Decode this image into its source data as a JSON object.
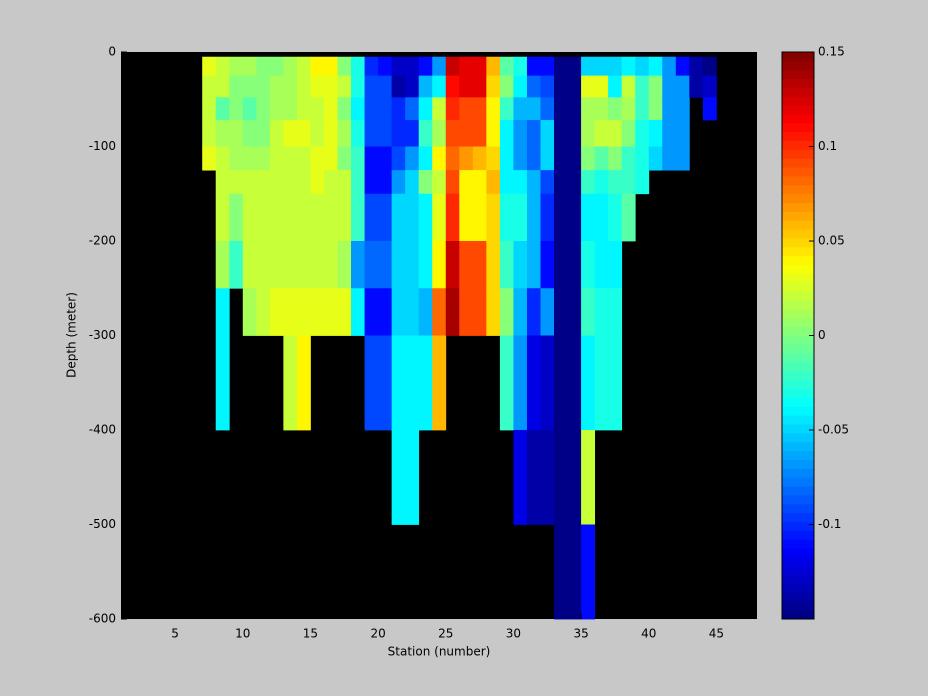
{
  "chart_data": {
    "type": "heatmap",
    "x_label": "Station (number)",
    "y_label": "Depth (meter)",
    "x": [
      7,
      8,
      9,
      10,
      11,
      12,
      13,
      14,
      15,
      16,
      17,
      18,
      19,
      20,
      21,
      22,
      23,
      24,
      25,
      26,
      27,
      28,
      29,
      30,
      31,
      32,
      33,
      34,
      35,
      36,
      37,
      38,
      39,
      40,
      41,
      42,
      43,
      44,
      45
    ],
    "y": [
      -5,
      -25,
      -48,
      -72,
      -100,
      -125,
      -150,
      -200,
      -250,
      -300,
      -400,
      -500,
      -600
    ],
    "values": [
      [
        0.03,
        0.02,
        0.02,
        0.02,
        0.03,
        null,
        null,
        null,
        null,
        null,
        null,
        null
      ],
      [
        0.02,
        0.02,
        -0.01,
        0.01,
        0.02,
        0.02,
        0.02,
        0.01,
        -0.04,
        -0.04,
        null,
        null
      ],
      [
        0.01,
        0.0,
        0.0,
        0.01,
        0.01,
        0.02,
        0.0,
        -0.02,
        null,
        null,
        null,
        null
      ],
      [
        0.01,
        0.0,
        -0.01,
        0.0,
        0.01,
        0.02,
        0.02,
        0.02,
        0.01,
        null,
        null,
        null
      ],
      [
        0.0,
        0.0,
        0.0,
        0.0,
        0.01,
        0.02,
        0.02,
        0.02,
        0.02,
        null,
        null,
        null
      ],
      [
        0.0,
        0.01,
        0.01,
        0.02,
        0.02,
        0.02,
        0.02,
        0.02,
        0.03,
        null,
        null,
        null
      ],
      [
        0.01,
        0.01,
        0.01,
        0.03,
        0.02,
        0.02,
        0.02,
        0.02,
        0.03,
        0.02,
        null,
        null
      ],
      [
        0.02,
        0.02,
        0.02,
        0.03,
        0.02,
        0.02,
        0.02,
        0.02,
        0.03,
        0.04,
        null,
        null
      ],
      [
        0.04,
        0.03,
        0.02,
        0.02,
        0.03,
        0.03,
        0.02,
        0.02,
        0.03,
        null,
        null,
        null
      ],
      [
        0.04,
        0.03,
        0.03,
        0.03,
        0.03,
        0.02,
        0.02,
        0.02,
        0.03,
        null,
        null,
        null
      ],
      [
        0.0,
        0.02,
        0.0,
        0.01,
        0.0,
        0.02,
        0.02,
        0.01,
        0.03,
        null,
        null,
        null
      ],
      [
        -0.03,
        -0.03,
        -0.04,
        -0.03,
        -0.02,
        -0.02,
        -0.02,
        -0.07,
        -0.04,
        null,
        null,
        null
      ],
      [
        -0.1,
        -0.09,
        -0.09,
        -0.09,
        -0.11,
        -0.11,
        -0.09,
        -0.08,
        -0.11,
        -0.09,
        null,
        null
      ],
      [
        -0.11,
        -0.09,
        -0.09,
        -0.09,
        -0.11,
        -0.11,
        -0.09,
        -0.08,
        -0.11,
        -0.09,
        null,
        null
      ],
      [
        -0.13,
        -0.14,
        -0.1,
        -0.1,
        -0.09,
        -0.07,
        -0.05,
        -0.05,
        -0.05,
        -0.04,
        -0.04,
        null
      ],
      [
        -0.13,
        -0.13,
        -0.08,
        -0.1,
        -0.07,
        -0.05,
        -0.05,
        -0.05,
        -0.05,
        -0.04,
        -0.04,
        null
      ],
      [
        -0.11,
        -0.06,
        -0.04,
        -0.02,
        -0.04,
        0.0,
        -0.04,
        -0.04,
        -0.06,
        -0.04,
        null,
        null
      ],
      [
        -0.07,
        -0.04,
        0.02,
        0.01,
        0.04,
        0.02,
        0.03,
        0.04,
        0.08,
        0.06,
        null,
        null
      ],
      [
        0.13,
        0.11,
        0.1,
        0.09,
        0.08,
        0.09,
        0.1,
        0.13,
        0.14,
        null,
        null,
        null
      ],
      [
        0.12,
        0.12,
        0.09,
        0.09,
        0.07,
        0.04,
        0.04,
        0.09,
        0.09,
        null,
        null,
        null
      ],
      [
        0.12,
        0.12,
        0.09,
        0.09,
        0.06,
        0.04,
        0.04,
        0.09,
        0.09,
        null,
        null,
        null
      ],
      [
        0.06,
        0.05,
        0.04,
        0.04,
        0.05,
        0.06,
        0.05,
        0.05,
        0.05,
        null,
        null,
        null
      ],
      [
        -0.01,
        0.0,
        -0.02,
        -0.04,
        -0.04,
        -0.04,
        -0.03,
        -0.02,
        0.0,
        -0.02,
        null,
        null
      ],
      [
        -0.03,
        -0.04,
        -0.06,
        -0.07,
        -0.07,
        -0.04,
        -0.03,
        -0.05,
        -0.06,
        -0.07,
        -0.12,
        null
      ],
      [
        -0.11,
        -0.08,
        -0.06,
        -0.08,
        -0.08,
        -0.06,
        -0.06,
        -0.06,
        -0.1,
        -0.12,
        -0.14,
        null
      ],
      [
        -0.11,
        -0.09,
        -0.08,
        -0.05,
        -0.05,
        -0.09,
        -0.1,
        -0.11,
        -0.07,
        -0.13,
        -0.14,
        null
      ],
      [
        -0.15,
        -0.15,
        -0.15,
        -0.15,
        -0.15,
        -0.15,
        -0.15,
        -0.15,
        -0.15,
        -0.15,
        -0.15,
        -0.15
      ],
      [
        -0.15,
        -0.15,
        -0.15,
        -0.15,
        -0.15,
        -0.15,
        -0.15,
        -0.15,
        -0.15,
        -0.15,
        -0.15,
        -0.15
      ],
      [
        -0.05,
        0.03,
        0.01,
        0.01,
        0.0,
        -0.02,
        -0.04,
        -0.03,
        -0.02,
        -0.04,
        0.02,
        -0.11
      ],
      [
        -0.05,
        0.03,
        0.01,
        0.02,
        -0.01,
        -0.03,
        -0.04,
        -0.04,
        -0.03,
        -0.03,
        null,
        null
      ],
      [
        -0.05,
        -0.04,
        0.0,
        0.02,
        0.0,
        -0.02,
        -0.03,
        -0.04,
        -0.03,
        -0.03,
        null,
        null
      ],
      [
        -0.04,
        0.02,
        0.01,
        0.0,
        -0.02,
        -0.02,
        -0.01,
        null,
        null,
        null,
        null,
        null
      ],
      [
        -0.05,
        -0.02,
        -0.02,
        -0.03,
        -0.03,
        -0.03,
        null,
        null,
        null,
        null,
        null,
        null
      ],
      [
        -0.04,
        0.0,
        0.0,
        -0.04,
        -0.05,
        null,
        null,
        null,
        null,
        null,
        null,
        null
      ],
      [
        -0.07,
        -0.07,
        -0.07,
        -0.07,
        -0.07,
        null,
        null,
        null,
        null,
        null,
        null,
        null
      ],
      [
        -0.11,
        -0.07,
        -0.07,
        -0.07,
        -0.07,
        null,
        null,
        null,
        null,
        null,
        null,
        null
      ],
      [
        -0.14,
        -0.14,
        null,
        null,
        null,
        null,
        null,
        null,
        null,
        null,
        null,
        null
      ],
      [
        -0.15,
        -0.13,
        -0.11,
        null,
        null,
        null,
        null,
        null,
        null,
        null,
        null,
        null
      ]
    ],
    "xlim": [
      1,
      48
    ],
    "ylim": [
      -600,
      0
    ],
    "xticks": [
      5,
      10,
      15,
      20,
      25,
      30,
      35,
      40,
      45
    ],
    "yticks": [
      -600,
      -500,
      -400,
      -300,
      -200,
      -100,
      0
    ],
    "clim": [
      -0.15,
      0.15
    ],
    "cticks": [
      -0.1,
      -0.05,
      0,
      0.05,
      0.1,
      0.15
    ],
    "colormap": "jet",
    "colormap_levels": 64,
    "background": "#000000"
  }
}
